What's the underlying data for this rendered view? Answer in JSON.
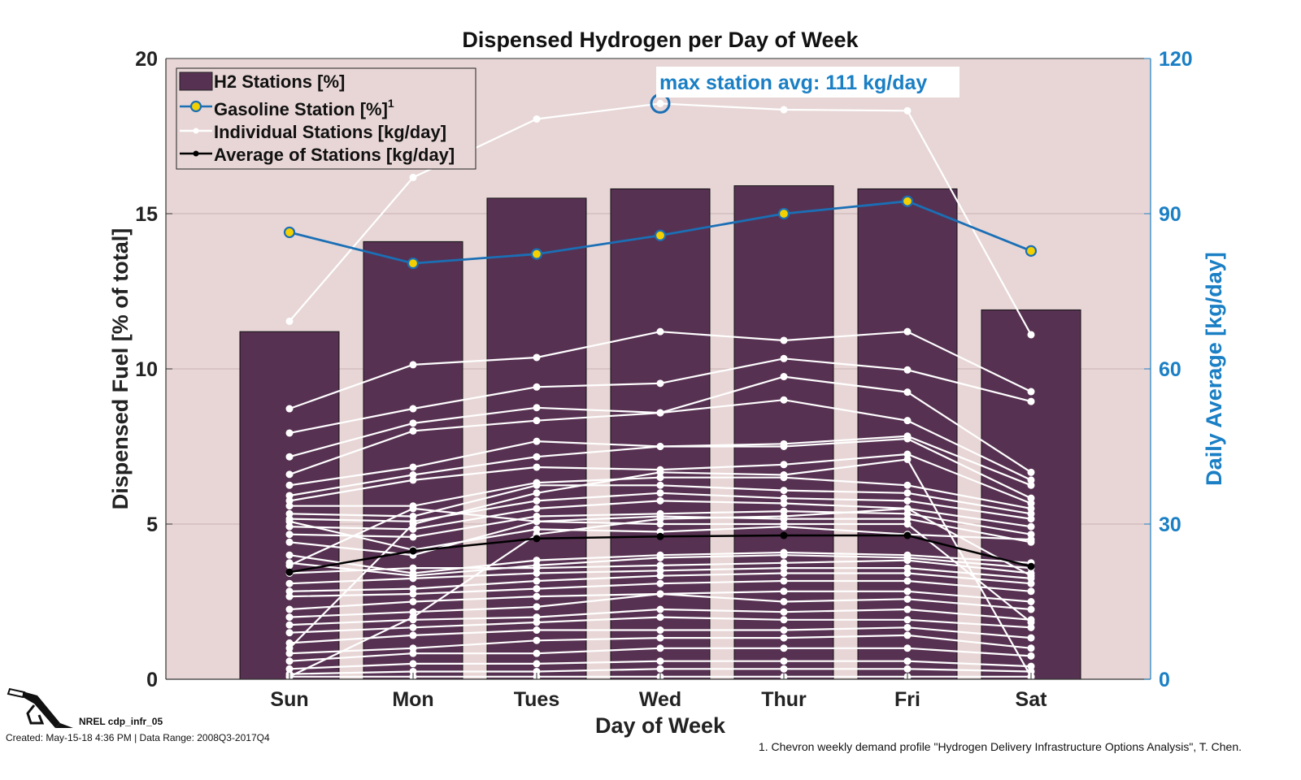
{
  "chart_data": {
    "type": "bar",
    "title": "Dispensed Hydrogen per Day of Week",
    "xlabel": "Day of Week",
    "ylabel": "Dispensed Fuel [% of total]",
    "ylabel_right": "Daily Average [kg/day]",
    "categories": [
      "Sun",
      "Mon",
      "Tues",
      "Wed",
      "Thur",
      "Fri",
      "Sat"
    ],
    "ylim": [
      0,
      20
    ],
    "ylim_right": [
      0,
      120
    ],
    "yticks": [
      "0",
      "5",
      "10",
      "15",
      "20"
    ],
    "yticks_right": [
      "0",
      "30",
      "60",
      "90",
      "120"
    ],
    "grid": "horizontal",
    "legend_position": "top-left",
    "colors": {
      "background": "#e8d6d6",
      "bar": "#573152",
      "gasoline_line": "#1a6fb5",
      "gasoline_marker_fill": "#f5d000",
      "individual": "#ffffff",
      "average": "#000000",
      "right_axis": "#1a7fc4"
    },
    "series": [
      {
        "name": "H2 Stations [%]",
        "type": "bar",
        "axis": "left",
        "values": [
          11.2,
          14.1,
          15.5,
          15.8,
          15.9,
          15.8,
          11.9
        ]
      },
      {
        "name": "Gasoline Station [%]",
        "superscript": "1",
        "type": "line",
        "axis": "left",
        "values": [
          14.4,
          13.4,
          13.7,
          14.3,
          15.0,
          15.4,
          13.8
        ]
      },
      {
        "name": "Individual Stations [kg/day]",
        "type": "line",
        "axis": "right",
        "stations": [
          [
            69.2,
            97.0,
            108.3,
            111.3,
            110.1,
            109.9,
            66.6
          ],
          [
            52.3,
            60.8,
            62.2,
            67.2,
            65.5,
            67.2,
            55.6
          ],
          [
            47.6,
            52.3,
            56.5,
            57.2,
            62.0,
            59.8,
            53.7
          ],
          [
            43.0,
            49.5,
            52.5,
            51.5,
            58.5,
            55.5,
            40.0
          ],
          [
            39.6,
            48.0,
            50.0,
            51.5,
            54.0,
            50.0,
            38.5
          ],
          [
            37.5,
            41.0,
            46.0,
            45.0,
            45.5,
            47.0,
            37.5
          ],
          [
            35.5,
            39.5,
            43.0,
            45.0,
            45.0,
            46.5,
            35.0
          ],
          [
            34.5,
            38.5,
            41.0,
            40.5,
            41.5,
            43.5,
            34.0
          ],
          [
            33.5,
            33.5,
            38.0,
            39.0,
            39.0,
            37.5,
            33.0
          ],
          [
            32.0,
            31.5,
            37.5,
            37.5,
            36.5,
            36.0,
            32.0
          ],
          [
            31.0,
            30.5,
            34.5,
            36.0,
            35.0,
            34.5,
            31.0
          ],
          [
            29.5,
            29.0,
            33.0,
            34.5,
            34.0,
            33.0,
            29.5
          ],
          [
            28.0,
            27.5,
            31.5,
            32.0,
            32.5,
            32.0,
            28.0
          ],
          [
            26.5,
            24.0,
            30.5,
            31.5,
            31.0,
            31.0,
            26.5
          ],
          [
            24.0,
            20.5,
            23.0,
            24.0,
            24.5,
            24.0,
            22.5
          ],
          [
            22.5,
            20.0,
            22.0,
            23.5,
            24.0,
            23.5,
            21.5
          ],
          [
            20.5,
            21.5,
            21.5,
            22.0,
            22.5,
            23.0,
            20.5
          ],
          [
            18.5,
            19.5,
            20.5,
            21.0,
            21.5,
            21.5,
            19.5
          ],
          [
            17.0,
            17.5,
            19.0,
            20.0,
            20.5,
            20.5,
            18.5
          ],
          [
            16.0,
            16.5,
            17.5,
            18.5,
            19.0,
            19.0,
            17.0
          ],
          [
            13.5,
            15.0,
            16.0,
            16.5,
            17.0,
            17.0,
            15.0
          ],
          [
            12.0,
            13.0,
            14.0,
            16.5,
            15.0,
            15.5,
            13.5
          ],
          [
            10.5,
            11.5,
            12.0,
            13.5,
            13.0,
            13.5,
            11.5
          ],
          [
            9.0,
            10.0,
            11.0,
            12.0,
            11.5,
            11.5,
            10.0
          ],
          [
            7.0,
            8.5,
            9.5,
            9.5,
            9.5,
            10.0,
            8.0
          ],
          [
            5.0,
            6.0,
            7.5,
            8.0,
            8.0,
            8.5,
            6.0
          ],
          [
            3.5,
            5.0,
            5.0,
            6.0,
            6.0,
            6.0,
            4.5
          ],
          [
            2.0,
            3.0,
            3.0,
            3.5,
            3.5,
            3.5,
            2.5
          ],
          [
            1.0,
            1.5,
            1.5,
            2.0,
            2.0,
            2.0,
            1.5
          ],
          [
            0.5,
            0.5,
            0.5,
            0.5,
            0.5,
            0.5,
            0.5
          ],
          [
            30.5,
            25.0,
            29.0,
            28.5,
            29.5,
            28.0,
            27.0
          ],
          [
            6.0,
            30.0,
            36.0,
            40.0,
            39.5,
            42.5,
            0.5
          ],
          [
            0.5,
            12.0,
            28.0,
            31.0,
            31.5,
            33.0,
            20.0
          ],
          [
            22.0,
            33.0,
            30.5,
            30.0,
            30.0,
            30.0,
            11.0
          ]
        ]
      },
      {
        "name": "Average of Stations [kg/day]",
        "type": "line",
        "axis": "right",
        "values": [
          20.7,
          24.8,
          27.2,
          27.6,
          27.8,
          27.8,
          21.8
        ]
      }
    ],
    "annotations": [
      {
        "text": "max station avg: 111 kg/day",
        "day": "Wed",
        "value": 111.3,
        "axis": "right"
      }
    ]
  },
  "footer": {
    "id_label": "NREL cdp_infr_05",
    "created": "Created: May-15-18  4:36 PM | Data Range: 2008Q3-2017Q4",
    "footnote": "1. Chevron weekly demand profile \"Hydrogen Delivery Infrastructure Options Analysis\", T. Chen."
  },
  "icons": {
    "logo": "fuel-nozzle-icon"
  }
}
